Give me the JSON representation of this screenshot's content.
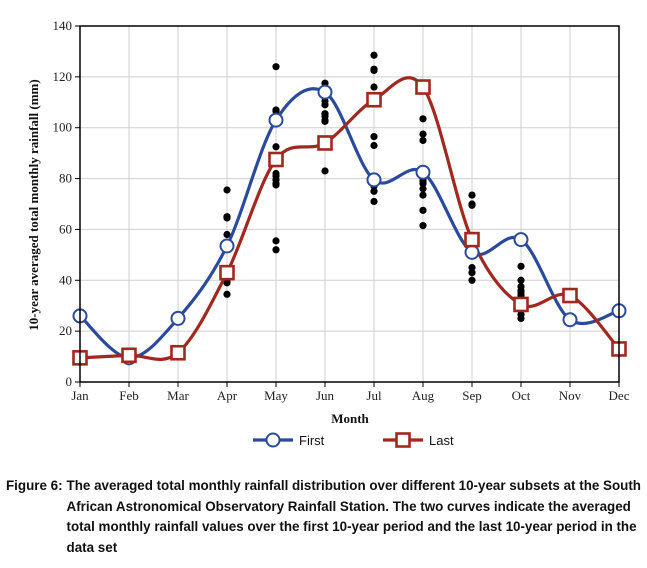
{
  "chart_data": {
    "type": "line",
    "xlabel": "Month",
    "ylabel": "10-year averaged total monthly rainfall (mm)",
    "categories": [
      "Jan",
      "Feb",
      "Mar",
      "Apr",
      "May",
      "Jun",
      "Jul",
      "Aug",
      "Sep",
      "Oct",
      "Nov",
      "Dec"
    ],
    "ylim": [
      0,
      140
    ],
    "yticks": [
      0,
      20,
      40,
      60,
      80,
      100,
      120,
      140
    ],
    "grid": true,
    "legend_position": "bottom",
    "series": [
      {
        "name": "First",
        "color": "#2a4a9c",
        "marker": "circle",
        "values": [
          26,
          9.5,
          25,
          53.5,
          103,
          114,
          79.5,
          82.5,
          51,
          56,
          24.5,
          28
        ]
      },
      {
        "name": "Last",
        "color": "#a0281e",
        "marker": "square",
        "values": [
          9.5,
          10.5,
          11.5,
          43,
          87.5,
          94,
          111,
          116,
          56,
          30.5,
          34,
          13
        ]
      }
    ],
    "scatter": {
      "color": "#000000",
      "points": {
        "Apr": [
          75.5,
          65,
          64.5,
          58,
          44,
          43,
          42,
          39.5,
          39,
          34.5
        ],
        "May": [
          124,
          107,
          106.5,
          92.5,
          82,
          81,
          79.5,
          78,
          77.5,
          55.5,
          52
        ],
        "Jun": [
          117.5,
          114,
          110.5,
          109,
          105.5,
          104.5,
          103,
          102.5,
          93,
          92.5,
          83
        ],
        "Jul": [
          128.5,
          123,
          122.5,
          116,
          96.5,
          93,
          80.5,
          77,
          75,
          71
        ],
        "Aug": [
          103.5,
          97.5,
          95,
          80,
          79,
          78,
          76,
          73.5,
          67.5,
          61.5
        ],
        "Sep": [
          73.5,
          70,
          69.5,
          54,
          53,
          52,
          50.5,
          45,
          43,
          40
        ],
        "Oct": [
          45.5,
          40,
          37.5,
          36,
          35,
          34,
          28,
          26.5,
          25
        ]
      }
    }
  },
  "caption": {
    "label": "Figure 6:",
    "text": "The averaged total monthly rainfall distribution over different 10-year subsets at the South African Astronomical Observatory Rainfall Station. The two curves indicate the averaged total monthly rainfall values over the first 10-year period and the last 10-year period in the data set"
  }
}
